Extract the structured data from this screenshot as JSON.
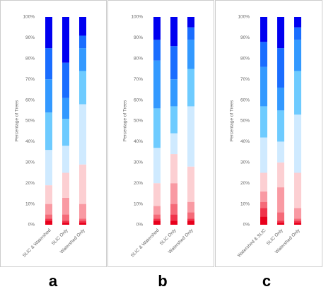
{
  "chart_data": [
    {
      "type": "stacked_bar",
      "panel_label": "a",
      "ylabel": "Percentage of Trees",
      "categories": [
        "SLIC & Watershed",
        "SLIC Only",
        "Watershed Only"
      ],
      "ylim": [
        0,
        100
      ],
      "yticks": [
        {
          "value": 0,
          "label": "0%"
        },
        {
          "value": 10,
          "label": "10%"
        },
        {
          "value": 20,
          "label": "20%"
        },
        {
          "value": 30,
          "label": "30%"
        },
        {
          "value": 40,
          "label": "40%"
        },
        {
          "value": 50,
          "label": "50%"
        },
        {
          "value": 60,
          "label": "60%"
        },
        {
          "value": 70,
          "label": "70%"
        },
        {
          "value": 80,
          "label": "80%"
        },
        {
          "value": 90,
          "label": "90%"
        },
        {
          "value": 100,
          "label": "100%"
        }
      ],
      "series": [
        {
          "color": "#e8001c",
          "values": [
            2,
            1,
            1
          ]
        },
        {
          "color": "#f0334a",
          "values": [
            1,
            1,
            1
          ]
        },
        {
          "color": "#f56a78",
          "values": [
            2,
            3,
            1
          ]
        },
        {
          "color": "#f99aa3",
          "values": [
            5,
            8,
            7
          ]
        },
        {
          "color": "#fccfd2",
          "values": [
            9,
            12,
            19
          ]
        },
        {
          "color": "#cfeaff",
          "values": [
            17,
            13,
            29
          ]
        },
        {
          "color": "#6ecbff",
          "values": [
            18,
            13,
            16
          ]
        },
        {
          "color": "#3399ff",
          "values": [
            16,
            10,
            11
          ]
        },
        {
          "color": "#1a6dff",
          "values": [
            15,
            17,
            6
          ]
        },
        {
          "color": "#0000f0",
          "values": [
            15,
            22,
            9
          ]
        }
      ]
    },
    {
      "type": "stacked_bar",
      "panel_label": "b",
      "ylabel": "Percentage of Trees",
      "categories": [
        "SLIC & Watershed",
        "SLIC Only",
        "Watershed Only"
      ],
      "ylim": [
        0,
        100
      ],
      "yticks": [
        {
          "value": 0,
          "label": "0%"
        },
        {
          "value": 10,
          "label": "10%"
        },
        {
          "value": 20,
          "label": "20%"
        },
        {
          "value": 30,
          "label": "30%"
        },
        {
          "value": 40,
          "label": "40%"
        },
        {
          "value": 50,
          "label": "50%"
        },
        {
          "value": 60,
          "label": "60%"
        },
        {
          "value": 70,
          "label": "70%"
        },
        {
          "value": 80,
          "label": "80%"
        },
        {
          "value": 90,
          "label": "90%"
        },
        {
          "value": 100,
          "label": "100%"
        }
      ],
      "series": [
        {
          "color": "#e8001c",
          "values": [
            2,
            2,
            2
          ]
        },
        {
          "color": "#f0334a",
          "values": [
            1,
            3,
            1
          ]
        },
        {
          "color": "#f56a78",
          "values": [
            2,
            5,
            3
          ]
        },
        {
          "color": "#f99aa3",
          "values": [
            4,
            10,
            5
          ]
        },
        {
          "color": "#fccfd2",
          "values": [
            11,
            14,
            17
          ]
        },
        {
          "color": "#cfeaff",
          "values": [
            17,
            10,
            29
          ]
        },
        {
          "color": "#6ecbff",
          "values": [
            19,
            13,
            18
          ]
        },
        {
          "color": "#3399ff",
          "values": [
            23,
            13,
            14
          ]
        },
        {
          "color": "#1a6dff",
          "values": [
            10,
            16,
            6
          ]
        },
        {
          "color": "#0000f0",
          "values": [
            11,
            14,
            5
          ]
        }
      ]
    },
    {
      "type": "stacked_bar",
      "panel_label": "c",
      "ylabel": "Percentage of Trees",
      "categories": [
        "Watershed & SLIC",
        "SLIC Only",
        "Watershed Only"
      ],
      "ylim": [
        0,
        100
      ],
      "yticks": [
        {
          "value": 0,
          "label": "0%"
        },
        {
          "value": 10,
          "label": "10%"
        },
        {
          "value": 20,
          "label": "20%"
        },
        {
          "value": 30,
          "label": "30%"
        },
        {
          "value": 40,
          "label": "40%"
        },
        {
          "value": 50,
          "label": "50%"
        },
        {
          "value": 60,
          "label": "60%"
        },
        {
          "value": 70,
          "label": "70%"
        },
        {
          "value": 80,
          "label": "80%"
        },
        {
          "value": 90,
          "label": "90%"
        },
        {
          "value": 100,
          "label": "100%"
        }
      ],
      "series": [
        {
          "color": "#e8001c",
          "values": [
            4,
            1,
            1
          ]
        },
        {
          "color": "#f0334a",
          "values": [
            4,
            1,
            1
          ]
        },
        {
          "color": "#f56a78",
          "values": [
            3,
            4,
            1
          ]
        },
        {
          "color": "#f99aa3",
          "values": [
            5,
            12,
            5
          ]
        },
        {
          "color": "#fccfd2",
          "values": [
            9,
            12,
            17
          ]
        },
        {
          "color": "#cfeaff",
          "values": [
            17,
            10,
            28
          ]
        },
        {
          "color": "#6ecbff",
          "values": [
            15,
            15,
            21
          ]
        },
        {
          "color": "#3399ff",
          "values": [
            19,
            11,
            15
          ]
        },
        {
          "color": "#1a6dff",
          "values": [
            12,
            19,
            6
          ]
        },
        {
          "color": "#0000f0",
          "values": [
            12,
            15,
            5
          ]
        }
      ]
    }
  ]
}
